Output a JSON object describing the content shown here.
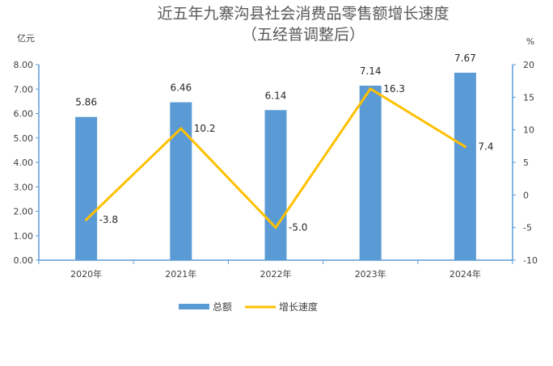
{
  "chart_data": {
    "type": "bar",
    "title": "近五年九寨沟县社会消费品零售额增长速度",
    "subtitle": "（五经普调整后）",
    "ylabel_left": "亿元",
    "ylabel_right": "%",
    "categories": [
      "2020年",
      "2021年",
      "2022年",
      "2023年",
      "2024年"
    ],
    "series": [
      {
        "name": "总额",
        "type": "bar",
        "axis": "left",
        "color": "#5B9BD5",
        "values": [
          5.86,
          6.46,
          6.14,
          7.14,
          7.67
        ],
        "labels": [
          "5.86",
          "6.46",
          "6.14",
          "7.14",
          "7.67"
        ]
      },
      {
        "name": "增长速度",
        "type": "line",
        "axis": "right",
        "color": "#FFC000",
        "values": [
          -3.8,
          10.2,
          -5.0,
          16.3,
          7.4
        ],
        "labels": [
          "-3.8",
          "10.2",
          "-5.0",
          "16.3",
          "7.4"
        ]
      }
    ],
    "ylim_left": [
      0,
      8
    ],
    "ylim_right": [
      -10,
      20
    ],
    "yticks_left": [
      "0.00",
      "1.00",
      "2.00",
      "3.00",
      "4.00",
      "5.00",
      "6.00",
      "7.00",
      "8.00"
    ],
    "yticks_right": [
      "-10",
      "-5",
      "0",
      "5",
      "10",
      "15",
      "20"
    ],
    "grid": false,
    "legend_position": "bottom",
    "axis_color": "#5B9BD5"
  }
}
